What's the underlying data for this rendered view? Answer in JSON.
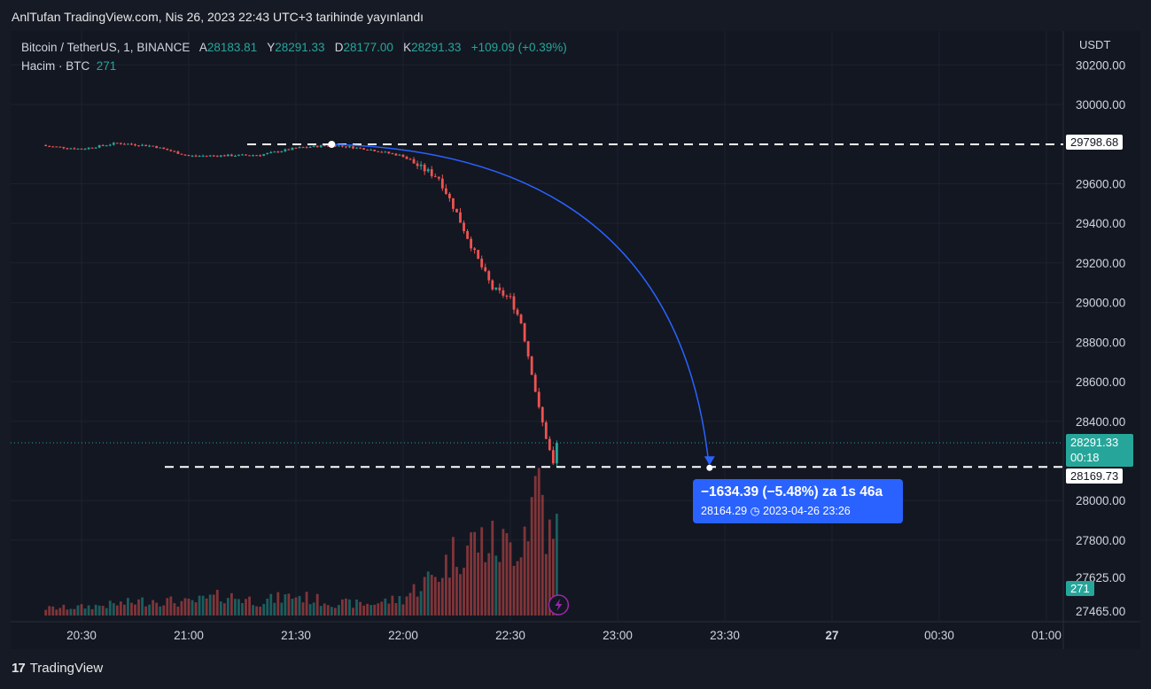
{
  "header": {
    "published_text": "AnlTufan TradingView.com, Nis 26, 2023 22:43 UTC+3 tarihinde yayınlandı"
  },
  "legend": {
    "symbol": "Bitcoin / TetherUS, 1, BINANCE",
    "open_label": "A",
    "open": "28183.81",
    "high_label": "Y",
    "high": "28291.33",
    "low_label": "D",
    "low": "28177.00",
    "close_label": "K",
    "close": "28291.33",
    "change": "+109.09 (+0.39%)",
    "volume_label": "Hacim · BTC",
    "volume": "271"
  },
  "axis": {
    "currency": "USDT",
    "price_ticks": [
      "30200.00",
      "30000.00",
      "29600.00",
      "29400.00",
      "29200.00",
      "29000.00",
      "28800.00",
      "28600.00",
      "28400.00",
      "28000.00",
      "27800.00",
      "27625.00",
      "27465.00"
    ],
    "time_ticks": [
      "20:30",
      "21:00",
      "21:30",
      "22:00",
      "22:30",
      "23:00",
      "23:30",
      "27",
      "00:30",
      "01:00"
    ]
  },
  "tags": {
    "upper_level": "29798.68",
    "last_price": "28291.33",
    "countdown": "00:18",
    "lower_level": "28169.73",
    "volume": "271"
  },
  "measure": {
    "line1": "−1634.39 (−5.48%) za 1s 46a",
    "line2_price": "28164.29",
    "line2_time": "2023-04-26   23:26"
  },
  "footer": {
    "brand": "TradingView"
  },
  "colors": {
    "up": "#26a69a",
    "down": "#ef5350",
    "accent": "#2962ff"
  },
  "chart_data": {
    "type": "candlestick",
    "symbol": "Bitcoin / TetherUS",
    "interval": "1",
    "exchange": "BINANCE",
    "ylim": [
      27400,
      30280
    ],
    "x": [
      "20:20",
      "20:30",
      "20:40",
      "20:50",
      "21:00",
      "21:10",
      "21:20",
      "21:30",
      "21:40",
      "21:50",
      "22:00",
      "22:05",
      "22:10",
      "22:15",
      "22:20",
      "22:25",
      "22:30",
      "22:33",
      "22:36",
      "22:38",
      "22:40",
      "22:42",
      "22:43"
    ],
    "close": [
      29790,
      29775,
      29805,
      29790,
      29740,
      29742,
      29745,
      29780,
      29795,
      29775,
      29740,
      29680,
      29630,
      29450,
      29250,
      29070,
      29020,
      28900,
      28650,
      28460,
      28320,
      28180,
      28291.33
    ],
    "volume": [
      25,
      30,
      40,
      55,
      45,
      70,
      50,
      70,
      45,
      40,
      60,
      110,
      150,
      230,
      260,
      250,
      240,
      280,
      390,
      520,
      310,
      240,
      271
    ],
    "volume_ticks": [
      "27625.00",
      "27465.00"
    ],
    "levels": {
      "upper": 29798.68,
      "lower": 28169.73
    },
    "measure": {
      "change": "−1634.39",
      "percent": "−5.48%",
      "duration": "1s 46a",
      "end_price": 28164.29,
      "end_time": "2023-04-26 23:26"
    }
  }
}
